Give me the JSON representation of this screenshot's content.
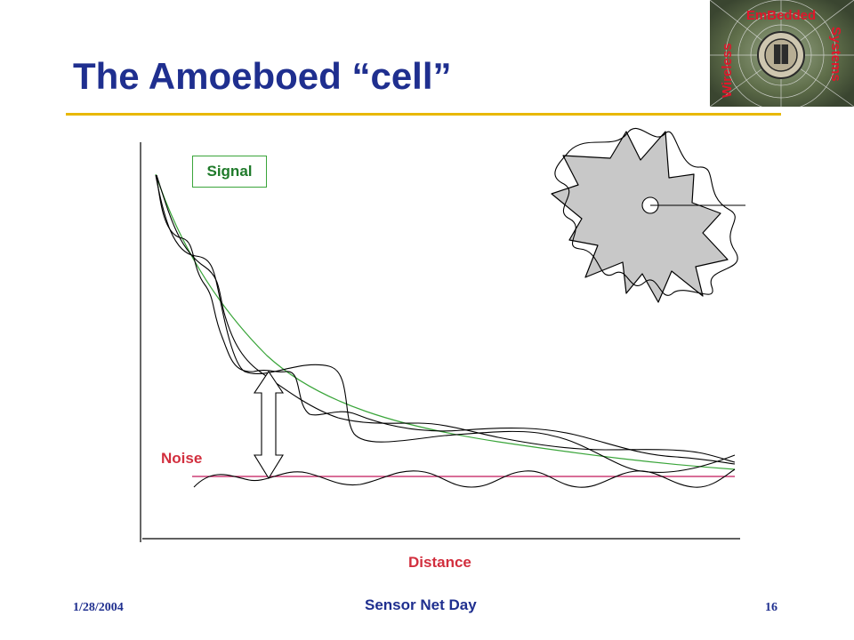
{
  "slide": {
    "title": "The Amoeboed “cell”",
    "footer": {
      "date": "1/28/2004",
      "center": "Sensor Net Day",
      "page": "16"
    }
  },
  "logo": {
    "top_text": "EmBedded",
    "left_text": "Wireless",
    "right_text": "Systems"
  },
  "diagram": {
    "signal_label": "Signal",
    "noise_label": "Noise",
    "x_axis_label": "Distance"
  },
  "colors": {
    "title": "#1f2f8f",
    "rule": "#e8b800",
    "signal_fit": "#3aa53a",
    "noise_line": "#c2185b",
    "labels_red": "#d22f3e",
    "amoeba_fill": "#c8c8c8"
  }
}
